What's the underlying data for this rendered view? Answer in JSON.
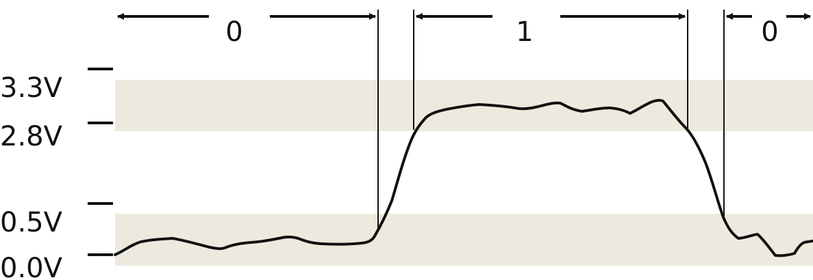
{
  "colors": {
    "band": "#ece9df",
    "line": "#111111",
    "background": "#ffffff"
  },
  "voltage_labels": {
    "v33": "3.3V",
    "v28": "2.8V",
    "v05": "0.5V",
    "v00": "0.0V"
  },
  "bit_labels": {
    "bit1": "0",
    "bit2": "1",
    "bit3": "0"
  },
  "chart_data": {
    "type": "line",
    "title": "",
    "xlabel": "",
    "ylabel": "",
    "y_ticks": [
      "3.3V",
      "2.8V",
      "0.5V",
      "0.0V"
    ],
    "bands": [
      {
        "from_v": 0.0,
        "to_v": 0.5
      },
      {
        "from_v": 2.8,
        "to_v": 3.3
      }
    ],
    "bit_sequence": [
      "0",
      "1",
      "0"
    ]
  }
}
